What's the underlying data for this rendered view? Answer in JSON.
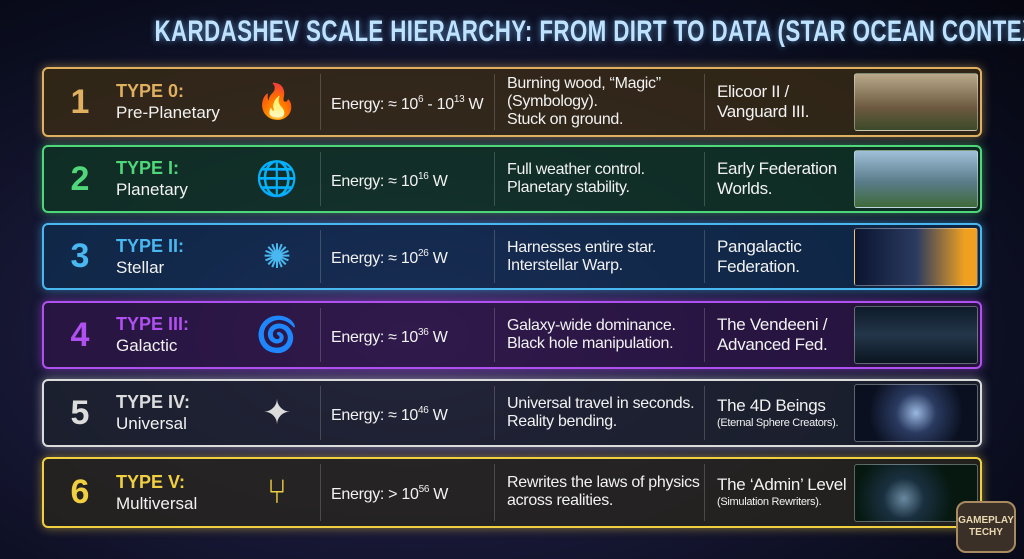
{
  "title": "KARDASHEV SCALE HIERARCHY: FROM DIRT TO DATA (STAR OCEAN CONTEXT)",
  "rows": [
    {
      "num": "1",
      "type": "TYPE 0:",
      "name": "Pre-Planetary",
      "icon": "campfire-sword-icon",
      "glyph": "🔥",
      "color": "#e0b060",
      "bg": "rgba(60,45,20,.75)",
      "energy": [
        {
          "t": "Energy: ≈ 10"
        },
        {
          "sup": "6"
        },
        {
          "t": " - 10"
        },
        {
          "sup": "13"
        },
        {
          "t": " W"
        }
      ],
      "desc": [
        "Burning wood, “Magic”",
        "(Symbology).",
        "Stuck on ground."
      ],
      "ex": "Elicoor II /",
      "ex2": "Vanguard III.",
      "img": "linear-gradient(#b9a98a,#6d5a40 60%,#3c4a2a)"
    },
    {
      "num": "2",
      "type": "TYPE I:",
      "name": "Planetary",
      "icon": "globe-network-icon",
      "glyph": "🌐",
      "color": "#4fd77a",
      "bg": "rgba(15,55,35,.75)",
      "energy": [
        {
          "t": "Energy: ≈ 10"
        },
        {
          "sup": "16"
        },
        {
          "t": " W"
        }
      ],
      "desc": [
        "Full weather control.",
        "Planetary stability."
      ],
      "ex": "Early Federation",
      "ex2": "Worlds.",
      "img": "linear-gradient(#9fc0d8,#5a7c8a 55%,#3f6a3a)"
    },
    {
      "num": "3",
      "type": "TYPE II:",
      "name": "Stellar",
      "icon": "star-sphere-icon",
      "glyph": "✺",
      "color": "#4ab8f0",
      "bg": "rgba(15,45,80,.75)",
      "energy": [
        {
          "t": "Energy: ≈ 10"
        },
        {
          "sup": "26"
        },
        {
          "t": " W"
        }
      ],
      "desc": [
        "Harnesses entire star.",
        "Interstellar Warp."
      ],
      "ex": "Pangalactic",
      "ex2": "Federation.",
      "img": "linear-gradient(90deg,#0b1530,#2a3a60 50%,#f0a020 90%)"
    },
    {
      "num": "4",
      "type": "TYPE III:",
      "name": "Galactic",
      "icon": "galaxy-hand-icon",
      "glyph": "🌀",
      "color": "#b050f0",
      "bg": "rgba(45,20,70,.75)",
      "energy": [
        {
          "t": "Energy: ≈ 10"
        },
        {
          "sup": "36"
        },
        {
          "t": " W"
        }
      ],
      "desc": [
        "Galaxy-wide dominance.",
        "Black hole manipulation."
      ],
      "ex": "The Vendeeni /",
      "ex2": "Advanced Fed.",
      "img": "linear-gradient(#0d1a2a,#24364a 50%,#0a1520)"
    },
    {
      "num": "5",
      "type": "TYPE IV:",
      "name": "Universal",
      "icon": "universe-network-icon",
      "glyph": "✦",
      "color": "#dcdcdc",
      "bg": "rgba(30,35,45,.75)",
      "energy": [
        {
          "t": "Energy: ≈ 10"
        },
        {
          "sup": "46"
        },
        {
          "t": " W"
        }
      ],
      "desc": [
        "Universal travel in seconds.",
        "Reality bending."
      ],
      "ex": "The 4D Beings",
      "ex2small": "(Eternal Sphere Creators).",
      "img": "radial-gradient(circle,#9ab8e0 0%,#2a3a60 30%,#0a1020 70%)"
    },
    {
      "num": "6",
      "type": "TYPE V:",
      "name": "Multiversal",
      "icon": "branching-servers-icon",
      "glyph": "⑂",
      "color": "#f0d040",
      "bg": "rgba(40,38,30,.8)",
      "energy": [
        {
          "t": "Energy: > 10"
        },
        {
          "sup": "56"
        },
        {
          "t": " W"
        }
      ],
      "desc": [
        "Rewrites the laws of physics",
        "across realities."
      ],
      "ex": "The ‘Admin’ Level",
      "ex2small": "(Simulation Rewriters).",
      "img": "radial-gradient(circle at 40% 60%,#6a8aa0 0%,#1a3040 25%,#061810 60%)"
    }
  ],
  "logo": "GAMEPLAY TECHY"
}
